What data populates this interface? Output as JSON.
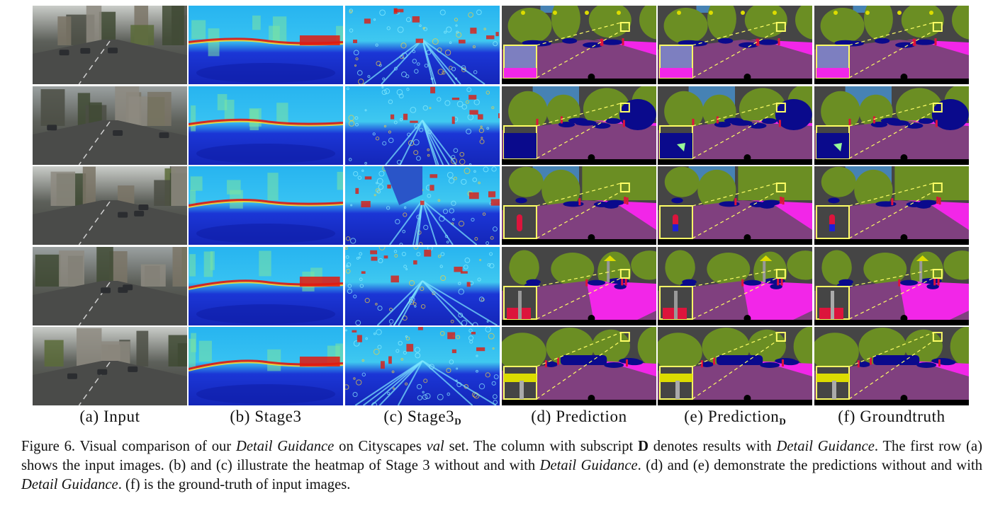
{
  "figure": {
    "columns": [
      {
        "id": "a",
        "label": "(a) Input",
        "subscript": "",
        "type": "photo"
      },
      {
        "id": "b",
        "label": "(b) Stage3",
        "subscript": "",
        "type": "heatmap"
      },
      {
        "id": "c",
        "label": "(c) Stage3",
        "subscript": "D",
        "type": "heatmap-detail"
      },
      {
        "id": "d",
        "label": "(d) Prediction",
        "subscript": "",
        "type": "segmentation"
      },
      {
        "id": "e",
        "label": "(e) Prediction",
        "subscript": "D",
        "type": "segmentation"
      },
      {
        "id": "f",
        "label": "(f) Groundtruth",
        "subscript": "",
        "type": "segmentation"
      }
    ],
    "rows": 5,
    "colors": {
      "heat_low": "#1b36d6",
      "heat_mid": "#27b4f0",
      "heat_high": "#e01a10",
      "road": "#80407f",
      "sidewalk": "#f226e8",
      "building": "#454545",
      "vegetation": "#6b8e23",
      "sky": "#4682b4",
      "car": "#0a0a8c",
      "person": "#dc143c",
      "sign": "#dcdc00",
      "wall": "#66669c",
      "inset_border": "#ffff66"
    }
  },
  "caption": {
    "number": "Figure 6.",
    "parts": [
      {
        "t": " Visual comparison of our ",
        "s": ""
      },
      {
        "t": "Detail Guidance",
        "s": "i"
      },
      {
        "t": " on Cityscapes ",
        "s": ""
      },
      {
        "t": "val",
        "s": "i"
      },
      {
        "t": " set.  The column with subscript ",
        "s": ""
      },
      {
        "t": "D",
        "s": "b"
      },
      {
        "t": " denotes results with ",
        "s": ""
      },
      {
        "t": "Detail Guidance",
        "s": "i"
      },
      {
        "t": ". The first row (a) shows the input images. (b) and (c) illustrate the heatmap of Stage 3 without and with ",
        "s": ""
      },
      {
        "t": "Detail Guidance",
        "s": "i"
      },
      {
        "t": ". (d) and (e) demonstrate the predictions without and with ",
        "s": ""
      },
      {
        "t": "Detail Guidance",
        "s": "i"
      },
      {
        "t": ". (f) is the ground-truth of input images.",
        "s": ""
      }
    ]
  }
}
